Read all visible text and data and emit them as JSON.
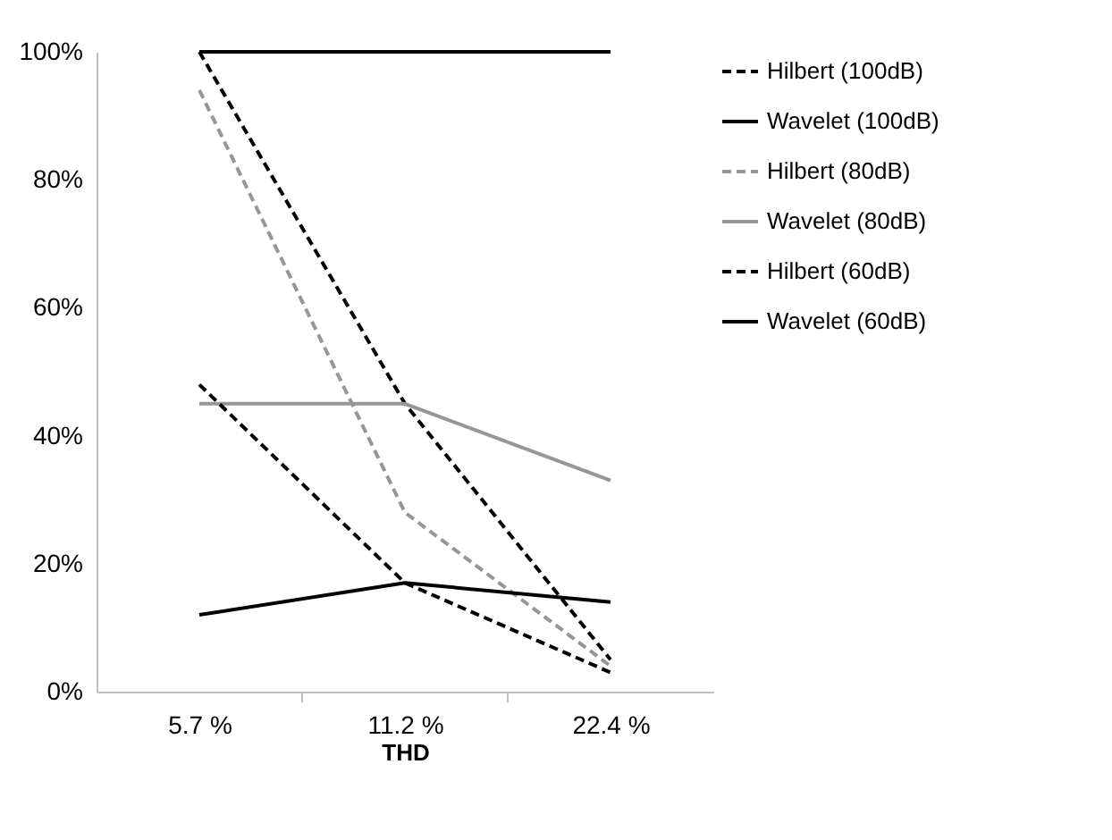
{
  "chart_data": {
    "type": "line",
    "xlabel": "THD",
    "categories": [
      "5.7 %",
      "11.2 %",
      "22.4 %"
    ],
    "ylim": [
      0,
      100
    ],
    "yticks": [
      {
        "value": 0,
        "label": "0%"
      },
      {
        "value": 20,
        "label": "20%"
      },
      {
        "value": 40,
        "label": "40%"
      },
      {
        "value": 60,
        "label": "60%"
      },
      {
        "value": 80,
        "label": "80%"
      },
      {
        "value": 100,
        "label": "100%"
      }
    ],
    "grid": false,
    "legend": "right",
    "marker": "none",
    "series": [
      {
        "name": "Hilbert (100dB)",
        "color": "#000000",
        "line_style": "dashed",
        "values": [
          100,
          45,
          5
        ]
      },
      {
        "name": "Wavelet (100dB)",
        "color": "#000000",
        "line_style": "solid",
        "values": [
          100,
          100,
          100
        ]
      },
      {
        "name": "Hilbert (80dB)",
        "color": "#969696",
        "line_style": "dashed",
        "values": [
          94,
          28,
          4
        ]
      },
      {
        "name": "Wavelet (80dB)",
        "color": "#969696",
        "line_style": "solid",
        "values": [
          45,
          45,
          33
        ]
      },
      {
        "name": "Hilbert (60dB)",
        "color": "#000000",
        "line_style": "dashed",
        "values": [
          48,
          17,
          3
        ]
      },
      {
        "name": "Wavelet (60dB)",
        "color": "#000000",
        "line_style": "solid",
        "values": [
          12,
          17,
          14
        ]
      }
    ]
  }
}
